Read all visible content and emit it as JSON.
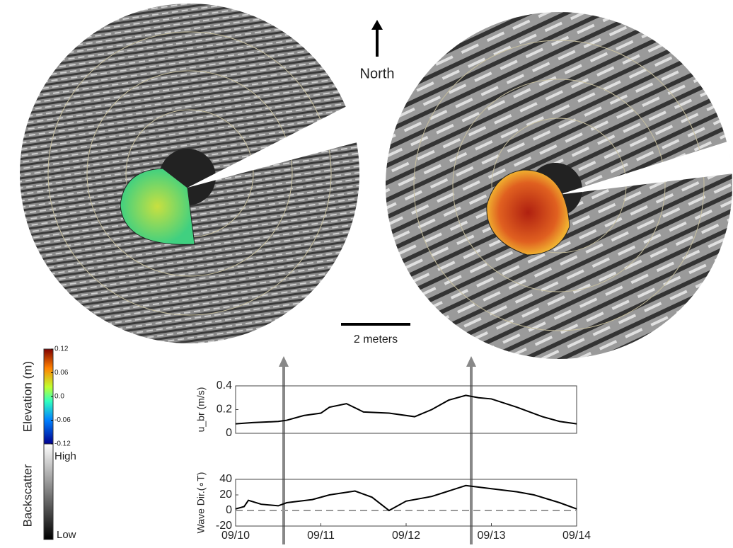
{
  "north_label": "North",
  "scale_label": "2 meters",
  "elevation_colorbar": {
    "label": "Elevation (m)",
    "ticks": [
      0.12,
      0.06,
      {
        "value": 0,
        "label": "0.0"
      },
      -0.06,
      -0.12
    ],
    "lim": [
      -0.12,
      0.12
    ]
  },
  "backscatter_colorbar": {
    "label": "Backscatter",
    "high": "High",
    "low": "Low"
  },
  "chart_data": [
    {
      "type": "line",
      "ylabel": "u_br (m/s)",
      "xlim": [
        10,
        14
      ],
      "ylim": [
        0,
        0.4
      ],
      "yticks": [
        0,
        0.2,
        0.4
      ],
      "x": [
        10.0,
        10.2,
        10.5,
        10.6,
        10.8,
        11.0,
        11.1,
        11.3,
        11.5,
        11.8,
        12.1,
        12.3,
        12.5,
        12.7,
        12.85,
        13.0,
        13.3,
        13.6,
        13.8,
        14.0
      ],
      "series": [
        {
          "color": "#000000",
          "values": [
            0.08,
            0.09,
            0.1,
            0.11,
            0.15,
            0.17,
            0.22,
            0.25,
            0.18,
            0.17,
            0.14,
            0.2,
            0.28,
            0.32,
            0.3,
            0.29,
            0.22,
            0.14,
            0.1,
            0.08
          ]
        }
      ]
    },
    {
      "type": "line",
      "ylabel": "Wave Dir.(∘T)",
      "xlim": [
        10,
        14
      ],
      "ylim": [
        -20,
        40
      ],
      "yticks": [
        -20,
        0,
        20,
        40
      ],
      "reference_line": 0,
      "xticks": [
        {
          "value": 10,
          "label": "09/10"
        },
        {
          "value": 11,
          "label": "09/11"
        },
        {
          "value": 12,
          "label": "09/12"
        },
        {
          "value": 13,
          "label": "09/13"
        },
        {
          "value": 14,
          "label": "09/14"
        }
      ],
      "x": [
        10.0,
        10.1,
        10.15,
        10.3,
        10.5,
        10.6,
        10.9,
        11.1,
        11.4,
        11.6,
        11.8,
        12.0,
        12.3,
        12.5,
        12.7,
        13.0,
        13.3,
        13.5,
        13.8,
        14.0
      ],
      "series": [
        {
          "color": "#000000",
          "values": [
            2,
            5,
            13,
            8,
            6,
            10,
            14,
            20,
            25,
            17,
            0,
            12,
            18,
            25,
            32,
            28,
            24,
            20,
            10,
            2
          ]
        }
      ]
    }
  ]
}
